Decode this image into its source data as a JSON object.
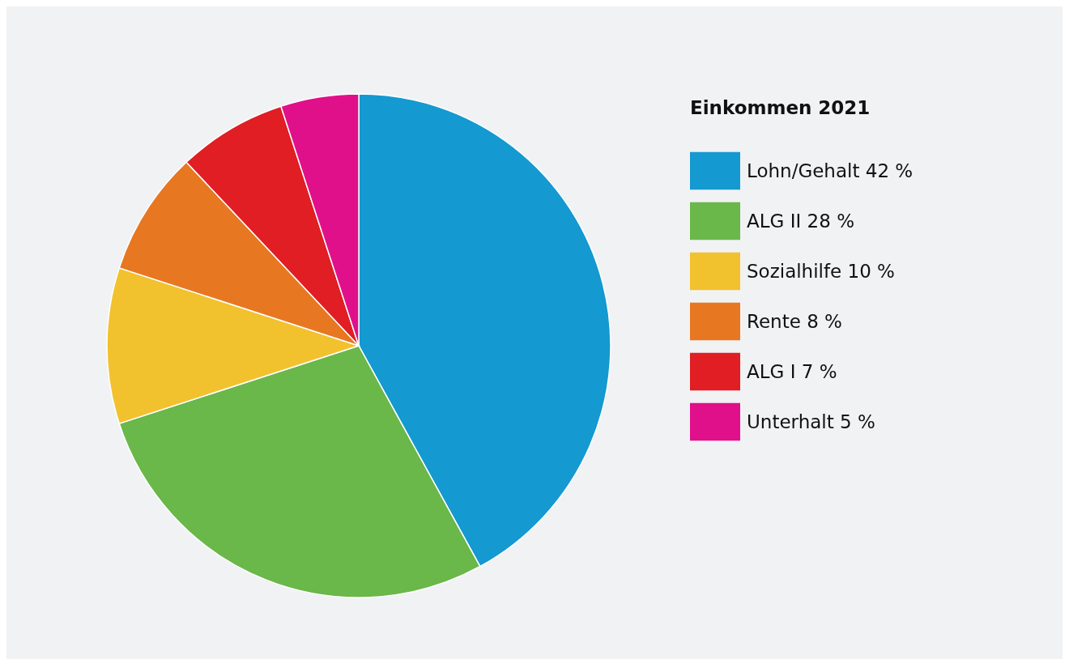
{
  "chart_data": {
    "type": "pie",
    "legend_title": "Einkommen 2021",
    "categories": [
      "Lohn/Gehalt 42 %",
      "ALG II 28 %",
      "Sozialhilfe 10 %",
      "Rente 8 %",
      "ALG I 7 %",
      "Unterhalt 5 %"
    ],
    "values": [
      42,
      28,
      10,
      8,
      7,
      5
    ],
    "colors": [
      "#1499d1",
      "#6ab74a",
      "#f2c12e",
      "#e87722",
      "#e01e24",
      "#e0108a"
    ],
    "legend": "right"
  }
}
